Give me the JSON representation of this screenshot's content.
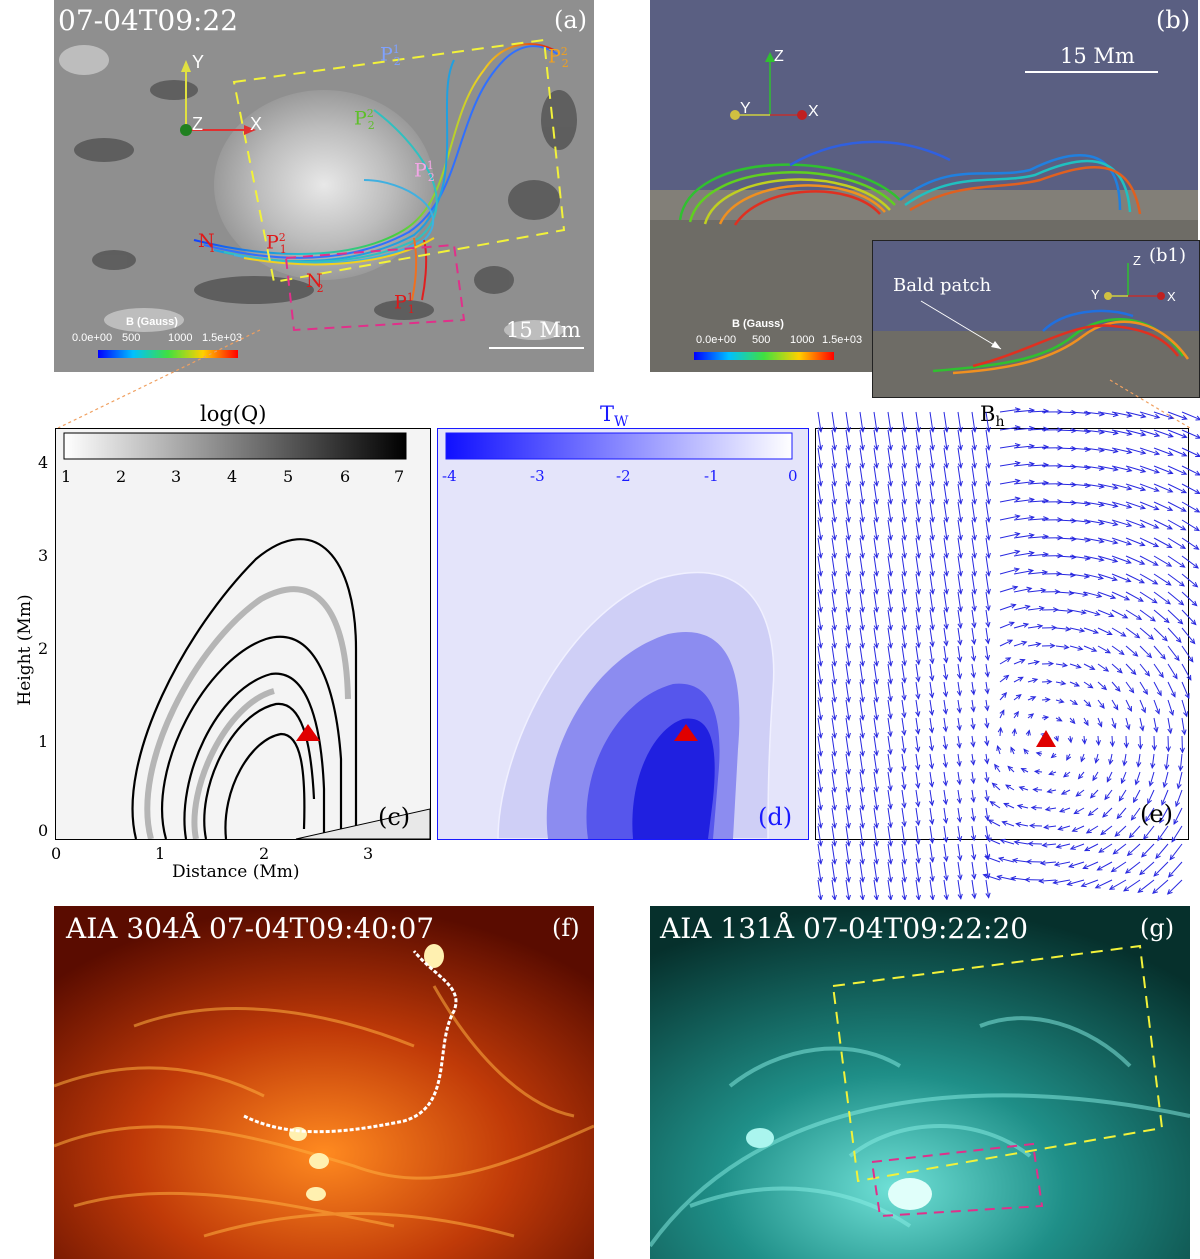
{
  "panel_a": {
    "label": "(a)",
    "timestamp": "07-04T09:22",
    "axes": {
      "y": "Y",
      "z": "Z",
      "x": "X"
    },
    "footpoints": [
      {
        "text": "P",
        "sup": "1",
        "sub": "2",
        "color": "#7fa2ff"
      },
      {
        "text": "P",
        "sup": "2",
        "sub": "2",
        "color": "#f0a020"
      },
      {
        "text": "P",
        "sup": "2",
        "sub": "2",
        "color": "#5ebf2a"
      },
      {
        "text": "P",
        "sup": "1",
        "sub": "2",
        "color": "#f2a6e6"
      },
      {
        "text": "P",
        "sup": "2",
        "sub": "1",
        "color": "#e01818"
      },
      {
        "text": "N",
        "sup": "",
        "sub": "1",
        "color": "#e01818"
      },
      {
        "text": "N",
        "sup": "",
        "sub": "2",
        "color": "#e01818"
      },
      {
        "text": "P",
        "sup": "1",
        "sub": "1",
        "color": "#e01818"
      }
    ],
    "scale_bar": "15 Mm",
    "colorbar": {
      "title": "B (Gauss)",
      "ticks": [
        "0.0e+00",
        "500",
        "1000",
        "1.5e+03"
      ]
    }
  },
  "panel_b": {
    "label": "(b)",
    "axes": {
      "z": "Z",
      "y": "Y",
      "x": "X"
    },
    "scale_bar": "15 Mm",
    "colorbar": {
      "title": "B (Gauss)",
      "ticks": [
        "0.0e+00",
        "500",
        "1000",
        "1.5e+03"
      ]
    }
  },
  "panel_b1": {
    "label": "(b1)",
    "annotation": "Bald patch",
    "axes": {
      "z": "Z",
      "y": "Y",
      "x": "X"
    }
  },
  "panel_c": {
    "label": "(c)",
    "title": "log(Q)",
    "colorbar_ticks": [
      "1",
      "2",
      "3",
      "4",
      "5",
      "6",
      "7"
    ],
    "ylabel": "Height (Mm)",
    "xlabel": "Distance (Mm)",
    "yticks": [
      "4",
      "3",
      "2",
      "1",
      "0"
    ],
    "xticks": [
      "0",
      "1",
      "2",
      "3"
    ]
  },
  "panel_d": {
    "label": "(d)",
    "title": "T",
    "title_sub": "W",
    "colorbar_ticks": [
      "-4",
      "-3",
      "-2",
      "-1",
      "0"
    ]
  },
  "panel_e": {
    "label": "(e)",
    "title": "B",
    "title_sub": "h"
  },
  "panel_f": {
    "label": "(f)",
    "title": "AIA 304Å  07-04T09:40:07"
  },
  "panel_g": {
    "label": "(g)",
    "title": "AIA 131Å  07-04T09:22:20"
  },
  "colors": {
    "box_yellow": "#f2f23a",
    "box_magenta": "#e0308a",
    "marker_red": "#e00000",
    "vector_blue": "#2828e0",
    "tw_blue": "#1a1aff"
  }
}
